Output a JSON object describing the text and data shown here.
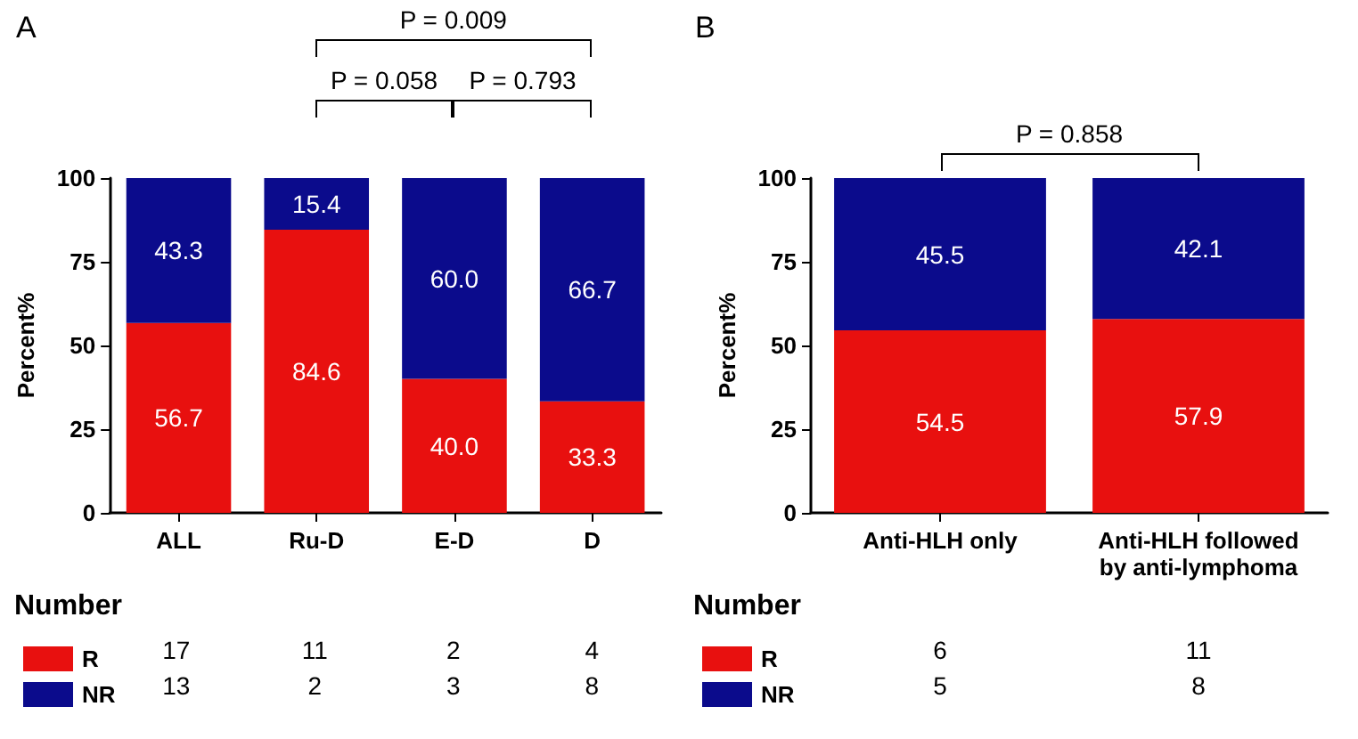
{
  "chart_data": [
    {
      "type": "bar",
      "title": "A",
      "ylabel": "Percent%",
      "stacked": true,
      "categories": [
        "ALL",
        "Ru-D",
        "E-D",
        "D"
      ],
      "series": [
        {
          "name": "R",
          "color": "#e8100f",
          "values": [
            56.7,
            84.6,
            40.0,
            33.3
          ],
          "value_labels": [
            "56.7",
            "84.6",
            "40.0",
            "33.3"
          ]
        },
        {
          "name": "NR",
          "color": "#0b0b8c",
          "values": [
            43.3,
            15.4,
            60.0,
            66.7
          ],
          "value_labels": [
            "43.3",
            "15.4",
            "60.0",
            "66.7"
          ]
        }
      ],
      "ylim": [
        0,
        100
      ],
      "yticks": [
        0,
        25,
        50,
        75,
        100
      ],
      "legend": "bottom left",
      "annotations": [
        "P = 0.009",
        "P = 0.058",
        "P = 0.793",
        "Number",
        "17",
        "11",
        "2",
        "4",
        "13",
        "2",
        "3",
        "8"
      ]
    },
    {
      "type": "bar",
      "title": "B",
      "ylabel": "Percent%",
      "stacked": true,
      "categories": [
        "Anti-HLH only",
        "Anti-HLH followed\nby anti-lymphoma"
      ],
      "series": [
        {
          "name": "R",
          "color": "#e8100f",
          "values": [
            54.5,
            57.9
          ],
          "value_labels": [
            "54.5",
            "57.9"
          ]
        },
        {
          "name": "NR",
          "color": "#0b0b8c",
          "values": [
            45.5,
            42.1
          ],
          "value_labels": [
            "45.5",
            "42.1"
          ]
        }
      ],
      "ylim": [
        0,
        100
      ],
      "yticks": [
        0,
        25,
        50,
        75,
        100
      ],
      "legend": "bottom left",
      "annotations": [
        "P = 0.858",
        "Number",
        "6",
        "11",
        "5",
        "8"
      ]
    }
  ]
}
